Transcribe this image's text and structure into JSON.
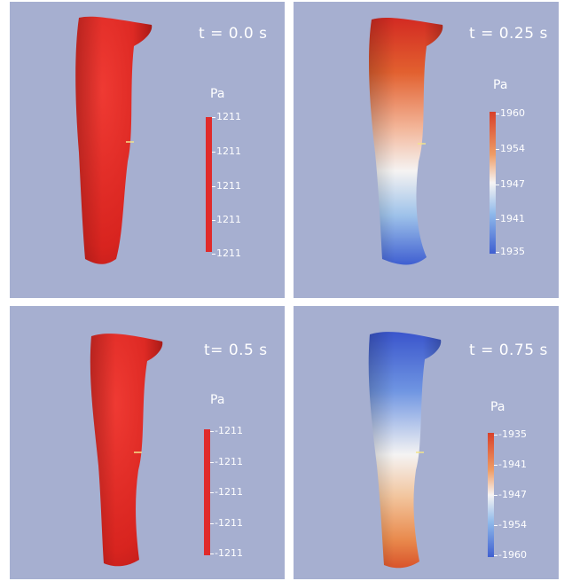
{
  "panels": [
    {
      "time_label": "t = 0.0 s",
      "unit": "Pa",
      "ticks": [
        "1211",
        "1211",
        "1211",
        "1211",
        "1211"
      ],
      "colorbar": "uniform-red",
      "vessel_color": "uniform-red"
    },
    {
      "time_label": "t = 0.25 s",
      "unit": "Pa",
      "ticks": [
        "1960",
        "1954",
        "1947",
        "1941",
        "1935"
      ],
      "colorbar": "red-to-blue",
      "vessel_color": "red-top-blue-bottom"
    },
    {
      "time_label": "t= 0.5 s",
      "unit": "Pa",
      "ticks": [
        "-1211",
        "-1211",
        "-1211",
        "-1211",
        "-1211"
      ],
      "colorbar": "uniform-red",
      "vessel_color": "uniform-red"
    },
    {
      "time_label": "t = 0.75 s",
      "unit": "Pa",
      "ticks": [
        "-1935",
        "-1941",
        "-1947",
        "-1954",
        "-1960"
      ],
      "colorbar": "red-to-blue",
      "vessel_color": "blue-top-red-bottom"
    }
  ],
  "colors": {
    "background": "#a6afd0",
    "red": "#e02b2b",
    "white": "#f4f2f2",
    "blue": "#3d62cf"
  }
}
